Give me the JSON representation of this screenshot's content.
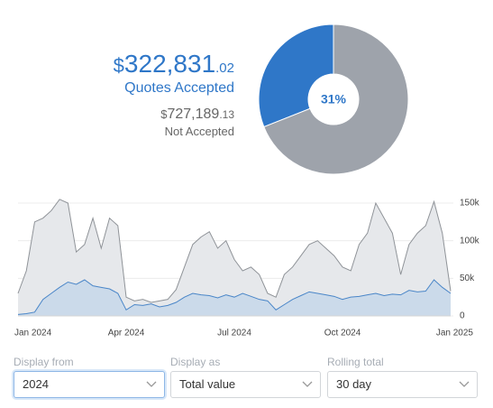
{
  "summary": {
    "accepted": {
      "currency": "$",
      "whole": "322,831",
      "cents": ".02",
      "label": "Quotes Accepted"
    },
    "not_accepted": {
      "currency": "$",
      "whole": "727,189",
      "cents": ".13",
      "label": "Not Accepted"
    }
  },
  "chart_data": [
    {
      "type": "donut",
      "values": [
        31,
        69
      ],
      "value_labels": [
        "31%",
        null
      ],
      "colors": [
        "#2f77c8",
        "#9ea3ab"
      ]
    },
    {
      "type": "area",
      "categories": [
        "Jan 2024",
        null,
        null,
        null,
        null,
        null,
        null,
        null,
        null,
        null,
        null,
        null,
        null,
        "Apr 2024",
        null,
        null,
        null,
        null,
        null,
        null,
        null,
        null,
        null,
        null,
        null,
        null,
        "Jul 2024",
        null,
        null,
        null,
        null,
        null,
        null,
        null,
        null,
        null,
        null,
        null,
        null,
        "Oct 2024",
        null,
        null,
        null,
        null,
        null,
        null,
        null,
        null,
        null,
        null,
        null,
        null,
        "Jan 2025"
      ],
      "series": [
        {
          "color": "#8f9398",
          "fill": "#e6e8eb",
          "values": [
            30000,
            60000,
            125000,
            130000,
            140000,
            155000,
            150000,
            85000,
            95000,
            130000,
            90000,
            130000,
            120000,
            25000,
            20000,
            22000,
            18000,
            20000,
            22000,
            35000,
            65000,
            95000,
            105000,
            112000,
            90000,
            100000,
            75000,
            60000,
            65000,
            55000,
            30000,
            25000,
            55000,
            65000,
            80000,
            95000,
            100000,
            90000,
            80000,
            65000,
            60000,
            95000,
            110000,
            150000,
            130000,
            110000,
            55000,
            95000,
            110000,
            120000,
            152000,
            110000,
            33000
          ]
        },
        {
          "color": "#4a86c8",
          "fill": "#cbdaea",
          "values": [
            2000,
            3000,
            5000,
            22000,
            30000,
            38000,
            45000,
            42000,
            48000,
            40000,
            38000,
            36000,
            30000,
            8000,
            15000,
            14000,
            16000,
            12000,
            14000,
            18000,
            25000,
            30000,
            28000,
            27000,
            24000,
            28000,
            25000,
            30000,
            26000,
            22000,
            20000,
            8000,
            15000,
            22000,
            27000,
            32000,
            30000,
            28000,
            26000,
            22000,
            25000,
            26000,
            28000,
            30000,
            27000,
            29000,
            28000,
            34000,
            32000,
            33000,
            48000,
            38000,
            30000
          ]
        }
      ],
      "ylim": [
        0,
        156000
      ],
      "yticks": [
        0,
        {
          "value": 50000,
          "label": "50k"
        },
        {
          "value": 100000,
          "label": "100k"
        },
        {
          "value": 150000,
          "label": "150k"
        }
      ],
      "grid": true
    }
  ],
  "controls": [
    {
      "label": "Display from",
      "value": "2024",
      "focused": true
    },
    {
      "label": "Display as",
      "value": "Total value",
      "focused": false
    },
    {
      "label": "Rolling total",
      "value": "30 day",
      "focused": false
    }
  ]
}
